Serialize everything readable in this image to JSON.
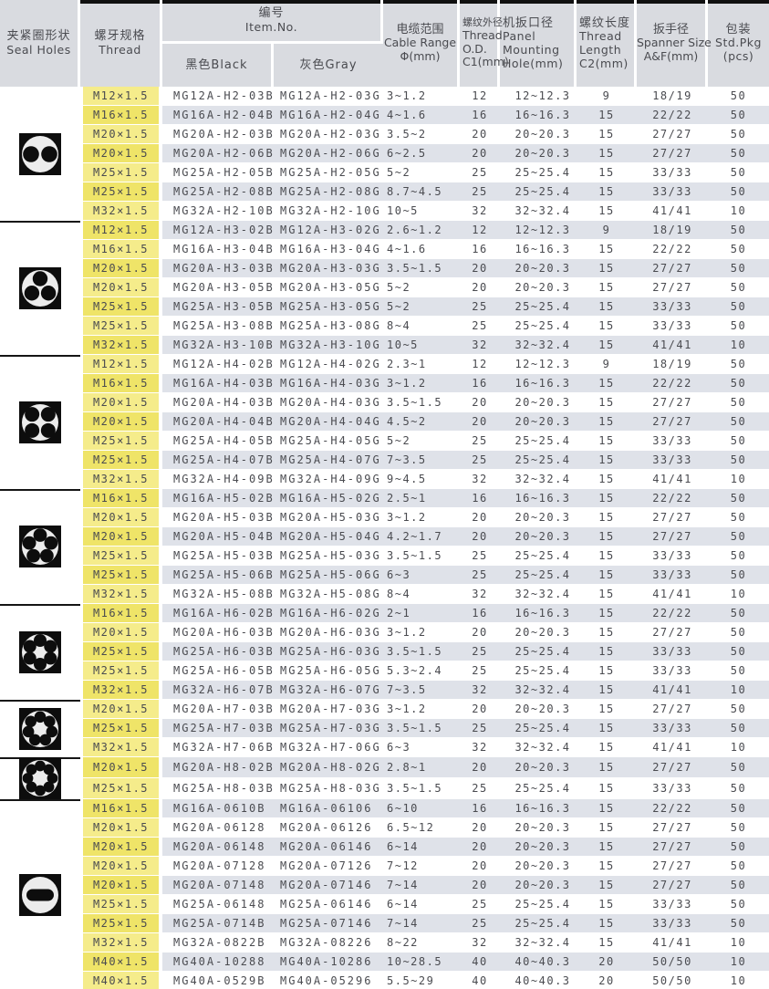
{
  "columns": {
    "seal": [
      "夹紧圈形状",
      "Seal Holes"
    ],
    "thread": [
      "螺牙规格",
      "Thread"
    ],
    "item": [
      "编号",
      "Item.No."
    ],
    "item_black": "黑色Black",
    "item_gray": "灰色Gray",
    "cable": [
      "电缆范围",
      "Cable Range",
      "Φ(mm)"
    ],
    "c1": [
      "螺纹外径",
      "Thread",
      "O.D.",
      "C1(mm)"
    ],
    "panel": [
      "机扳口径",
      "Panel",
      "Mounting",
      "Hole(mm)"
    ],
    "c2": [
      "螺纹长度",
      "Thread",
      "Length",
      "C2(mm)"
    ],
    "spanner": [
      "扳手径",
      "Spanner Size",
      "A&F(mm)"
    ],
    "pkg": [
      "包装",
      "Std.Pkg",
      "(pcs)"
    ]
  },
  "colors": {
    "header_bg": "#d9dbe0",
    "band_gray": "#dfe2e9",
    "thread_yellow": "#f5ec8b",
    "thread_yellow_alt": "#efe468",
    "text": "#4a4b50",
    "separator_black": "#101010"
  },
  "groups": [
    {
      "seal_icon": "two-hole-seal-icon",
      "holes": 2,
      "rows": [
        [
          "M12×1.5",
          "MG12A-H2-03B",
          "MG12A-H2-03G",
          "3~1.2",
          "12",
          "12~12.3",
          "9",
          "18/19",
          "50"
        ],
        [
          "M16×1.5",
          "MG16A-H2-04B",
          "MG16A-H2-04G",
          "4~1.6",
          "16",
          "16~16.3",
          "15",
          "22/22",
          "50"
        ],
        [
          "M20×1.5",
          "MG20A-H2-03B",
          "MG20A-H2-03G",
          "3.5~2",
          "20",
          "20~20.3",
          "15",
          "27/27",
          "50"
        ],
        [
          "M20×1.5",
          "MG20A-H2-06B",
          "MG20A-H2-06G",
          "6~2.5",
          "20",
          "20~20.3",
          "15",
          "27/27",
          "50"
        ],
        [
          "M25×1.5",
          "MG25A-H2-05B",
          "MG25A-H2-05G",
          "5~2",
          "25",
          "25~25.4",
          "15",
          "33/33",
          "50"
        ],
        [
          "M25×1.5",
          "MG25A-H2-08B",
          "MG25A-H2-08G",
          "8.7~4.5",
          "25",
          "25~25.4",
          "15",
          "33/33",
          "50"
        ],
        [
          "M32×1.5",
          "MG32A-H2-10B",
          "MG32A-H2-10G",
          "10~5",
          "32",
          "32~32.4",
          "15",
          "41/41",
          "10"
        ]
      ]
    },
    {
      "seal_icon": "three-hole-seal-icon",
      "holes": 3,
      "rows": [
        [
          "M12×1.5",
          "MG12A-H3-02B",
          "MG12A-H3-02G",
          "2.6~1.2",
          "12",
          "12~12.3",
          "9",
          "18/19",
          "50"
        ],
        [
          "M16×1.5",
          "MG16A-H3-04B",
          "MG16A-H3-04G",
          "4~1.6",
          "16",
          "16~16.3",
          "15",
          "22/22",
          "50"
        ],
        [
          "M20×1.5",
          "MG20A-H3-03B",
          "MG20A-H3-03G",
          "3.5~1.5",
          "20",
          "20~20.3",
          "15",
          "27/27",
          "50"
        ],
        [
          "M20×1.5",
          "MG20A-H3-05B",
          "MG20A-H3-05G",
          "5~2",
          "20",
          "20~20.3",
          "15",
          "27/27",
          "50"
        ],
        [
          "M25×1.5",
          "MG25A-H3-05B",
          "MG25A-H3-05G",
          "5~2",
          "25",
          "25~25.4",
          "15",
          "33/33",
          "50"
        ],
        [
          "M25×1.5",
          "MG25A-H3-08B",
          "MG25A-H3-08G",
          "8~4",
          "25",
          "25~25.4",
          "15",
          "33/33",
          "50"
        ],
        [
          "M32×1.5",
          "MG32A-H3-10B",
          "MG32A-H3-10G",
          "10~5",
          "32",
          "32~32.4",
          "15",
          "41/41",
          "10"
        ]
      ]
    },
    {
      "seal_icon": "four-hole-seal-icon",
      "holes": 4,
      "rows": [
        [
          "M12×1.5",
          "MG12A-H4-02B",
          "MG12A-H4-02G",
          "2.3~1",
          "12",
          "12~12.3",
          "9",
          "18/19",
          "50"
        ],
        [
          "M16×1.5",
          "MG16A-H4-03B",
          "MG16A-H4-03G",
          "3~1.2",
          "16",
          "16~16.3",
          "15",
          "22/22",
          "50"
        ],
        [
          "M20×1.5",
          "MG20A-H4-03B",
          "MG20A-H4-03G",
          "3.5~1.5",
          "20",
          "20~20.3",
          "15",
          "27/27",
          "50"
        ],
        [
          "M20×1.5",
          "MG20A-H4-04B",
          "MG20A-H4-04G",
          "4.5~2",
          "20",
          "20~20.3",
          "15",
          "27/27",
          "50"
        ],
        [
          "M25×1.5",
          "MG25A-H4-05B",
          "MG25A-H4-05G",
          "5~2",
          "25",
          "25~25.4",
          "15",
          "33/33",
          "50"
        ],
        [
          "M25×1.5",
          "MG25A-H4-07B",
          "MG25A-H4-07G",
          "7~3.5",
          "25",
          "25~25.4",
          "15",
          "33/33",
          "50"
        ],
        [
          "M32×1.5",
          "MG32A-H4-09B",
          "MG32A-H4-09G",
          "9~4.5",
          "32",
          "32~32.4",
          "15",
          "41/41",
          "10"
        ]
      ]
    },
    {
      "seal_icon": "five-hole-seal-icon",
      "holes": 5,
      "rows": [
        [
          "M16×1.5",
          "MG16A-H5-02B",
          "MG16A-H5-02G",
          "2.5~1",
          "16",
          "16~16.3",
          "15",
          "22/22",
          "50"
        ],
        [
          "M20×1.5",
          "MG20A-H5-03B",
          "MG20A-H5-03G",
          "3~1.2",
          "20",
          "20~20.3",
          "15",
          "27/27",
          "50"
        ],
        [
          "M20×1.5",
          "MG20A-H5-04B",
          "MG20A-H5-04G",
          "4.2~1.7",
          "20",
          "20~20.3",
          "15",
          "27/27",
          "50"
        ],
        [
          "M25×1.5",
          "MG25A-H5-03B",
          "MG25A-H5-03G",
          "3.5~1.5",
          "25",
          "25~25.4",
          "15",
          "33/33",
          "50"
        ],
        [
          "M25×1.5",
          "MG25A-H5-06B",
          "MG25A-H5-06G",
          "6~3",
          "25",
          "25~25.4",
          "15",
          "33/33",
          "50"
        ],
        [
          "M32×1.5",
          "MG32A-H5-08B",
          "MG32A-H5-08G",
          "8~4",
          "32",
          "32~32.4",
          "15",
          "41/41",
          "10"
        ]
      ]
    },
    {
      "seal_icon": "six-hole-seal-icon",
      "holes": 6,
      "rows": [
        [
          "M16×1.5",
          "MG16A-H6-02B",
          "MG16A-H6-02G",
          "2~1",
          "16",
          "16~16.3",
          "15",
          "22/22",
          "50"
        ],
        [
          "M20×1.5",
          "MG20A-H6-03B",
          "MG20A-H6-03G",
          "3~1.2",
          "20",
          "20~20.3",
          "15",
          "27/27",
          "50"
        ],
        [
          "M25×1.5",
          "MG25A-H6-03B",
          "MG25A-H6-03G",
          "3.5~1.5",
          "25",
          "25~25.4",
          "15",
          "33/33",
          "50"
        ],
        [
          "M25×1.5",
          "MG25A-H6-05B",
          "MG25A-H6-05G",
          "5.3~2.4",
          "25",
          "25~25.4",
          "15",
          "33/33",
          "50"
        ],
        [
          "M32×1.5",
          "MG32A-H6-07B",
          "MG32A-H6-07G",
          "7~3.5",
          "32",
          "32~32.4",
          "15",
          "41/41",
          "10"
        ]
      ]
    },
    {
      "seal_icon": "seven-hole-seal-icon",
      "holes": 7,
      "rows": [
        [
          "M20×1.5",
          "MG20A-H7-03B",
          "MG20A-H7-03G",
          "3~1.2",
          "20",
          "20~20.3",
          "15",
          "27/27",
          "50"
        ],
        [
          "M25×1.5",
          "MG25A-H7-03B",
          "MG25A-H7-03G",
          "3.5~1.5",
          "25",
          "25~25.4",
          "15",
          "33/33",
          "50"
        ],
        [
          "M32×1.5",
          "MG32A-H7-06B",
          "MG32A-H7-06G",
          "6~3",
          "32",
          "32~32.4",
          "15",
          "41/41",
          "10"
        ]
      ]
    },
    {
      "seal_icon": "eight-hole-seal-icon",
      "holes": 8,
      "rows": [
        [
          "M20×1.5",
          "MG20A-H8-02B",
          "MG20A-H8-02G",
          "2.8~1",
          "20",
          "20~20.3",
          "15",
          "27/27",
          "50"
        ],
        [
          "M25×1.5",
          "MG25A-H8-03B",
          "MG25A-H8-03G",
          "3.5~1.5",
          "25",
          "25~25.4",
          "15",
          "33/33",
          "50"
        ]
      ]
    },
    {
      "seal_icon": "oval-slot-seal-icon",
      "holes": "slot",
      "rows": [
        [
          "M16×1.5",
          "MG16A-0610B",
          "MG16A-06106",
          "6~10",
          "16",
          "16~16.3",
          "15",
          "22/22",
          "50"
        ],
        [
          "M20×1.5",
          "MG20A-06128",
          "MG20A-06126",
          "6.5~12",
          "20",
          "20~20.3",
          "15",
          "27/27",
          "50"
        ],
        [
          "M20×1.5",
          "MG20A-06148",
          "MG20A-06146",
          "6~14",
          "20",
          "20~20.3",
          "15",
          "27/27",
          "50"
        ],
        [
          "M20×1.5",
          "MG20A-07128",
          "MG20A-07126",
          "7~12",
          "20",
          "20~20.3",
          "15",
          "27/27",
          "50"
        ],
        [
          "M20×1.5",
          "MG20A-07148",
          "MG20A-07146",
          "7~14",
          "20",
          "20~20.3",
          "15",
          "27/27",
          "50"
        ],
        [
          "M25×1.5",
          "MG25A-06148",
          "MG25A-06146",
          "6~14",
          "25",
          "25~25.4",
          "15",
          "33/33",
          "50"
        ],
        [
          "M25×1.5",
          "MG25A-0714B",
          "MG25A-07146",
          "7~14",
          "25",
          "25~25.4",
          "15",
          "33/33",
          "50"
        ],
        [
          "M32×1.5",
          "MG32A-0822B",
          "MG32A-08226",
          "8~22",
          "32",
          "32~32.4",
          "15",
          "41/41",
          "10"
        ],
        [
          "M40×1.5",
          "MG40A-10288",
          "MG40A-10286",
          "10~28.5",
          "40",
          "40~40.3",
          "20",
          "50/50",
          "10"
        ],
        [
          "M40×1.5",
          "MG40A-0529B",
          "MG40A-05296",
          "5.5~29",
          "40",
          "40~40.3",
          "20",
          "50/50",
          "10"
        ]
      ]
    }
  ]
}
